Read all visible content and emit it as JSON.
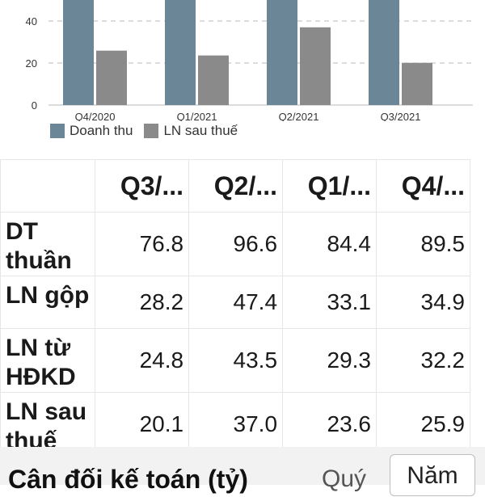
{
  "chart_data": {
    "type": "bar",
    "categories": [
      "Q4/2020",
      "Q1/2021",
      "Q2/2021",
      "Q3/2021"
    ],
    "series": [
      {
        "name": "Doanh thu",
        "values": [
          89.5,
          84.4,
          96.6,
          76.8
        ],
        "color": "#6b8797"
      },
      {
        "name": "LN sau thuế",
        "values": [
          25.9,
          23.6,
          37.0,
          20.1
        ],
        "color": "#8a8a8a"
      }
    ],
    "yticks": [
      0,
      20,
      40
    ],
    "ylim": [
      0,
      100
    ],
    "grid": true,
    "legend_position": "bottom"
  },
  "table": {
    "columns": [
      "Q3/...",
      "Q2/...",
      "Q1/...",
      "Q4/..."
    ],
    "rows": [
      {
        "label": "DT thuần",
        "values": [
          "76.8",
          "96.6",
          "84.4",
          "89.5"
        ]
      },
      {
        "label": "LN gộp",
        "values": [
          "28.2",
          "47.4",
          "33.1",
          "34.9"
        ]
      },
      {
        "label": "LN từ HĐKD",
        "values": [
          "24.8",
          "43.5",
          "29.3",
          "32.2"
        ]
      },
      {
        "label": "LN sau thuế",
        "values": [
          "20.1",
          "37.0",
          "23.6",
          "25.9"
        ]
      }
    ]
  },
  "bottom": {
    "title": "Cân đối kế toán (tỷ)",
    "tab_quarter": "Quý",
    "tab_year": "Năm"
  }
}
